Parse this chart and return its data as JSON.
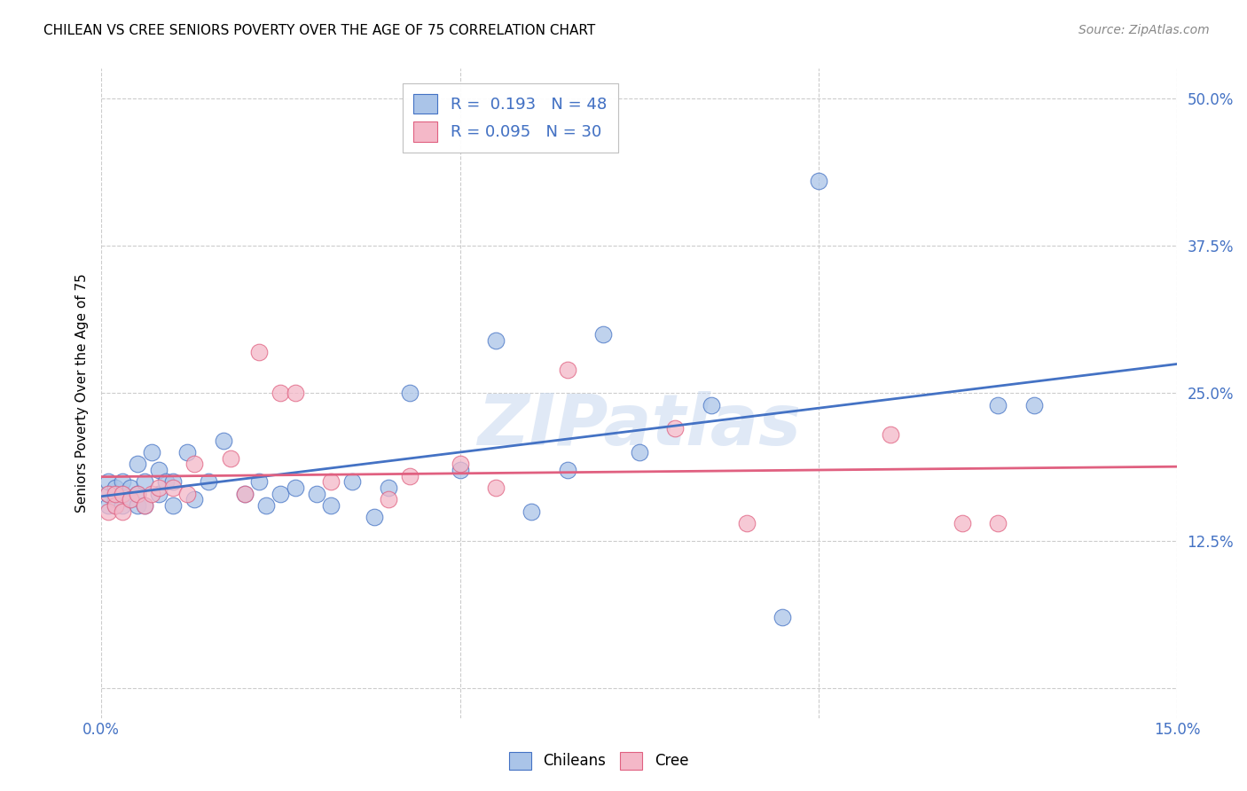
{
  "title": "CHILEAN VS CREE SENIORS POVERTY OVER THE AGE OF 75 CORRELATION CHART",
  "source": "Source: ZipAtlas.com",
  "ylabel": "Seniors Poverty Over the Age of 75",
  "xlim": [
    0.0,
    0.15
  ],
  "ylim": [
    -0.025,
    0.525
  ],
  "background_color": "#ffffff",
  "grid_color": "#cccccc",
  "chilean_color": "#aac4e8",
  "cree_color": "#f4b8c8",
  "chilean_line_color": "#4472c4",
  "cree_line_color": "#e06080",
  "chilean_R": 0.193,
  "chilean_N": 48,
  "cree_R": 0.095,
  "cree_N": 30,
  "chilean_x": [
    0.001,
    0.001,
    0.001,
    0.002,
    0.002,
    0.002,
    0.003,
    0.003,
    0.003,
    0.004,
    0.004,
    0.005,
    0.005,
    0.005,
    0.006,
    0.006,
    0.007,
    0.008,
    0.008,
    0.009,
    0.01,
    0.01,
    0.012,
    0.013,
    0.015,
    0.017,
    0.02,
    0.022,
    0.023,
    0.025,
    0.027,
    0.03,
    0.032,
    0.035,
    0.038,
    0.04,
    0.043,
    0.05,
    0.055,
    0.06,
    0.065,
    0.07,
    0.075,
    0.085,
    0.095,
    0.1,
    0.125,
    0.13
  ],
  "chilean_y": [
    0.155,
    0.165,
    0.175,
    0.155,
    0.16,
    0.17,
    0.155,
    0.165,
    0.175,
    0.16,
    0.17,
    0.155,
    0.165,
    0.19,
    0.155,
    0.175,
    0.2,
    0.165,
    0.185,
    0.175,
    0.155,
    0.175,
    0.2,
    0.16,
    0.175,
    0.21,
    0.165,
    0.175,
    0.155,
    0.165,
    0.17,
    0.165,
    0.155,
    0.175,
    0.145,
    0.17,
    0.25,
    0.185,
    0.295,
    0.15,
    0.185,
    0.3,
    0.2,
    0.24,
    0.06,
    0.43,
    0.24,
    0.24
  ],
  "cree_x": [
    0.001,
    0.001,
    0.002,
    0.002,
    0.003,
    0.003,
    0.004,
    0.005,
    0.006,
    0.007,
    0.008,
    0.01,
    0.012,
    0.013,
    0.018,
    0.02,
    0.022,
    0.025,
    0.027,
    0.032,
    0.04,
    0.043,
    0.05,
    0.055,
    0.065,
    0.08,
    0.09,
    0.11,
    0.12,
    0.125
  ],
  "cree_y": [
    0.15,
    0.165,
    0.155,
    0.165,
    0.15,
    0.165,
    0.16,
    0.165,
    0.155,
    0.165,
    0.17,
    0.17,
    0.165,
    0.19,
    0.195,
    0.165,
    0.285,
    0.25,
    0.25,
    0.175,
    0.16,
    0.18,
    0.19,
    0.17,
    0.27,
    0.22,
    0.14,
    0.215,
    0.14,
    0.14
  ]
}
